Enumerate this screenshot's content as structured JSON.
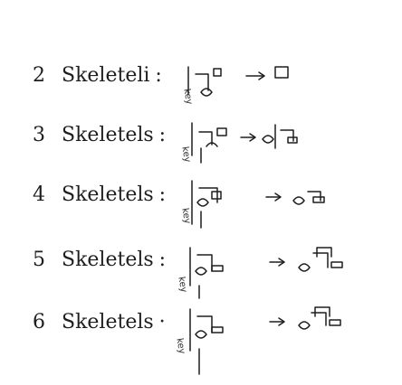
{
  "rows": [
    {
      "number": "2",
      "word": "Skeleteli",
      "colon": ":",
      "key_tag": "key"
    },
    {
      "number": "3",
      "word": "Skeletels",
      "colon": ":",
      "key_tag": "key"
    },
    {
      "number": "4",
      "word": "Skeletels",
      "colon": ":",
      "key_tag": "key"
    },
    {
      "number": "5",
      "word": "Skeletels",
      "colon": ":",
      "key_tag": "key"
    },
    {
      "number": "6",
      "word": "Skeletels",
      "colon": "·",
      "key_tag": "key"
    }
  ],
  "colors": {
    "ink": "#1e1e1e",
    "paper": "#ffffff"
  }
}
